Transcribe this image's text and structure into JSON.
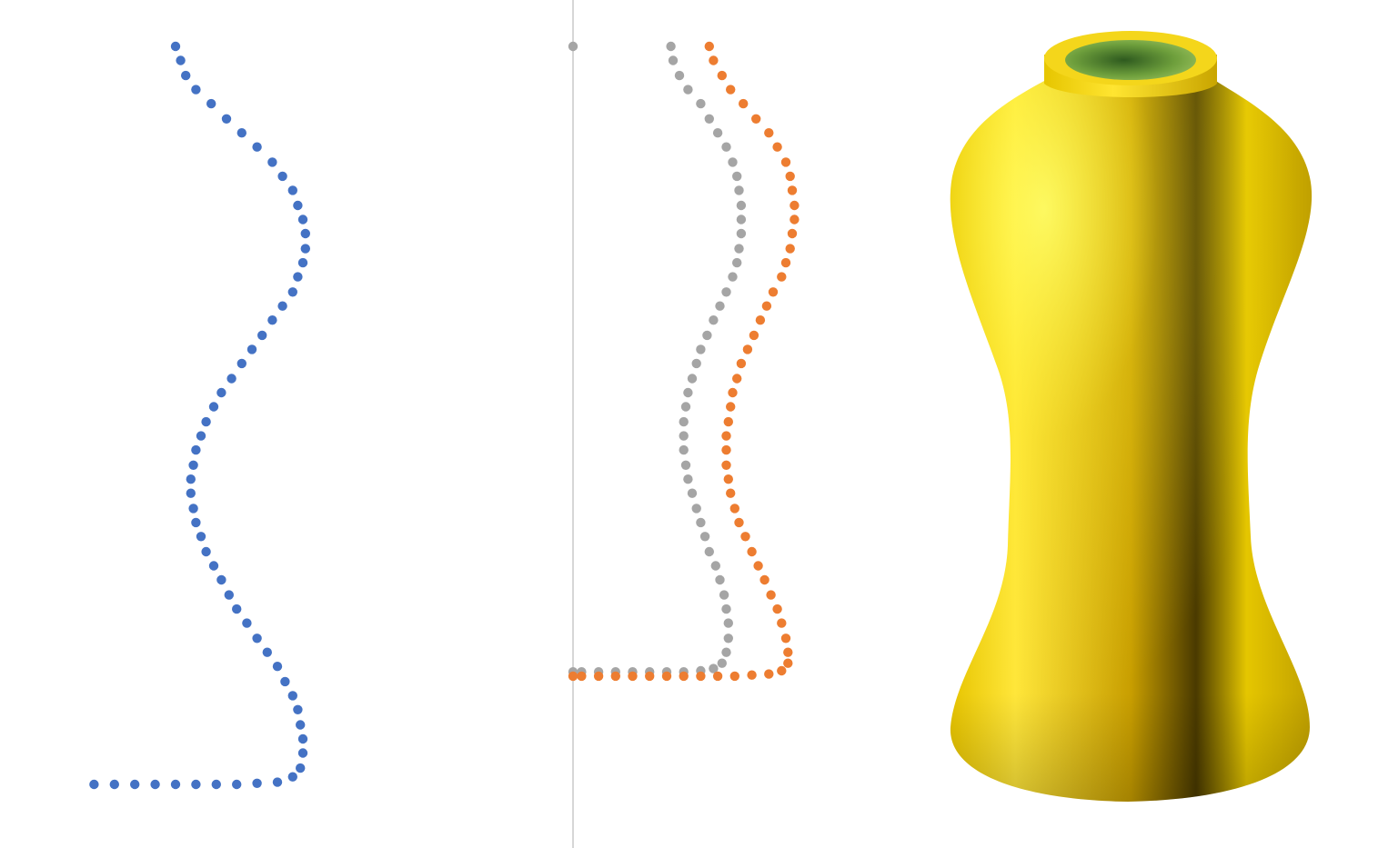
{
  "chart_data": [
    {
      "type": "scatter",
      "title": "",
      "xlabel": "",
      "ylabel": "",
      "grid": false,
      "legend": "none",
      "series": [
        {
          "color": "#4472C4",
          "points": [
            [
              -0.04,
              1.0
            ],
            [
              -0.03,
              0.987
            ],
            [
              -0.02,
              0.973
            ],
            [
              0.0,
              0.96
            ],
            [
              0.03,
              0.947
            ],
            [
              0.06,
              0.933
            ],
            [
              0.09,
              0.92
            ],
            [
              0.12,
              0.907
            ],
            [
              0.15,
              0.893
            ],
            [
              0.17,
              0.88
            ],
            [
              0.19,
              0.867
            ],
            [
              0.2,
              0.853
            ],
            [
              0.21,
              0.84
            ],
            [
              0.215,
              0.827
            ],
            [
              0.215,
              0.813
            ],
            [
              0.21,
              0.8
            ],
            [
              0.2,
              0.787
            ],
            [
              0.19,
              0.773
            ],
            [
              0.17,
              0.76
            ],
            [
              0.15,
              0.747
            ],
            [
              0.13,
              0.733
            ],
            [
              0.11,
              0.72
            ],
            [
              0.09,
              0.707
            ],
            [
              0.07,
              0.693
            ],
            [
              0.05,
              0.68
            ],
            [
              0.035,
              0.667
            ],
            [
              0.02,
              0.653
            ],
            [
              0.01,
              0.64
            ],
            [
              0.0,
              0.627
            ],
            [
              -0.005,
              0.613
            ],
            [
              -0.01,
              0.6
            ],
            [
              -0.01,
              0.587
            ],
            [
              -0.005,
              0.573
            ],
            [
              0.0,
              0.56
            ],
            [
              0.01,
              0.547
            ],
            [
              0.02,
              0.533
            ],
            [
              0.035,
              0.52
            ],
            [
              0.05,
              0.507
            ],
            [
              0.065,
              0.493
            ],
            [
              0.08,
              0.48
            ],
            [
              0.1,
              0.467
            ],
            [
              0.12,
              0.453
            ],
            [
              0.14,
              0.44
            ],
            [
              0.16,
              0.427
            ],
            [
              0.175,
              0.413
            ],
            [
              0.19,
              0.4
            ],
            [
              0.2,
              0.387
            ],
            [
              0.205,
              0.373
            ],
            [
              0.21,
              0.36
            ],
            [
              0.21,
              0.347
            ],
            [
              0.205,
              0.333
            ],
            [
              0.19,
              0.325
            ],
            [
              0.16,
              0.32
            ],
            [
              0.12,
              0.319
            ],
            [
              0.08,
              0.318
            ],
            [
              0.04,
              0.318
            ],
            [
              0.0,
              0.318
            ],
            [
              -0.04,
              0.318
            ],
            [
              -0.08,
              0.318
            ],
            [
              -0.12,
              0.318
            ],
            [
              -0.16,
              0.318
            ],
            [
              -0.2,
              0.318
            ]
          ]
        }
      ]
    },
    {
      "type": "scatter",
      "title": "",
      "xlabel": "",
      "ylabel": "",
      "grid": false,
      "legend": "none",
      "series": [
        {
          "color": "#A5A5A5",
          "points": [
            [
              0.0,
              1.0
            ],
            [
              0.23,
              1.0
            ],
            [
              0.235,
              0.987
            ],
            [
              0.25,
              0.973
            ],
            [
              0.27,
              0.96
            ],
            [
              0.3,
              0.947
            ],
            [
              0.32,
              0.933
            ],
            [
              0.34,
              0.92
            ],
            [
              0.36,
              0.907
            ],
            [
              0.375,
              0.893
            ],
            [
              0.385,
              0.88
            ],
            [
              0.39,
              0.867
            ],
            [
              0.395,
              0.853
            ],
            [
              0.395,
              0.84
            ],
            [
              0.395,
              0.827
            ],
            [
              0.39,
              0.813
            ],
            [
              0.385,
              0.8
            ],
            [
              0.375,
              0.787
            ],
            [
              0.36,
              0.773
            ],
            [
              0.345,
              0.76
            ],
            [
              0.33,
              0.747
            ],
            [
              0.315,
              0.733
            ],
            [
              0.3,
              0.72
            ],
            [
              0.29,
              0.707
            ],
            [
              0.28,
              0.693
            ],
            [
              0.27,
              0.68
            ],
            [
              0.265,
              0.667
            ],
            [
              0.26,
              0.653
            ],
            [
              0.26,
              0.64
            ],
            [
              0.26,
              0.627
            ],
            [
              0.265,
              0.613
            ],
            [
              0.27,
              0.6
            ],
            [
              0.28,
              0.587
            ],
            [
              0.29,
              0.573
            ],
            [
              0.3,
              0.56
            ],
            [
              0.31,
              0.547
            ],
            [
              0.32,
              0.533
            ],
            [
              0.335,
              0.52
            ],
            [
              0.345,
              0.507
            ],
            [
              0.355,
              0.493
            ],
            [
              0.36,
              0.48
            ],
            [
              0.365,
              0.467
            ],
            [
              0.365,
              0.453
            ],
            [
              0.36,
              0.44
            ],
            [
              0.35,
              0.43
            ],
            [
              0.33,
              0.425
            ],
            [
              0.3,
              0.423
            ],
            [
              0.26,
              0.422
            ],
            [
              0.22,
              0.422
            ],
            [
              0.18,
              0.422
            ],
            [
              0.14,
              0.422
            ],
            [
              0.1,
              0.422
            ],
            [
              0.06,
              0.422
            ],
            [
              0.02,
              0.422
            ],
            [
              0.0,
              0.422
            ]
          ]
        },
        {
          "color": "#ED7D31",
          "points": [
            [
              0.32,
              1.0
            ],
            [
              0.33,
              0.987
            ],
            [
              0.35,
              0.973
            ],
            [
              0.37,
              0.96
            ],
            [
              0.4,
              0.947
            ],
            [
              0.43,
              0.933
            ],
            [
              0.46,
              0.92
            ],
            [
              0.48,
              0.907
            ],
            [
              0.5,
              0.893
            ],
            [
              0.51,
              0.88
            ],
            [
              0.515,
              0.867
            ],
            [
              0.52,
              0.853
            ],
            [
              0.52,
              0.84
            ],
            [
              0.515,
              0.827
            ],
            [
              0.51,
              0.813
            ],
            [
              0.5,
              0.8
            ],
            [
              0.49,
              0.787
            ],
            [
              0.47,
              0.773
            ],
            [
              0.455,
              0.76
            ],
            [
              0.44,
              0.747
            ],
            [
              0.425,
              0.733
            ],
            [
              0.41,
              0.72
            ],
            [
              0.395,
              0.707
            ],
            [
              0.385,
              0.693
            ],
            [
              0.375,
              0.68
            ],
            [
              0.37,
              0.667
            ],
            [
              0.365,
              0.653
            ],
            [
              0.36,
              0.64
            ],
            [
              0.36,
              0.627
            ],
            [
              0.36,
              0.613
            ],
            [
              0.365,
              0.6
            ],
            [
              0.37,
              0.587
            ],
            [
              0.38,
              0.573
            ],
            [
              0.39,
              0.56
            ],
            [
              0.405,
              0.547
            ],
            [
              0.42,
              0.533
            ],
            [
              0.435,
              0.52
            ],
            [
              0.45,
              0.507
            ],
            [
              0.465,
              0.493
            ],
            [
              0.48,
              0.48
            ],
            [
              0.49,
              0.467
            ],
            [
              0.5,
              0.453
            ],
            [
              0.505,
              0.44
            ],
            [
              0.505,
              0.43
            ],
            [
              0.49,
              0.423
            ],
            [
              0.46,
              0.42
            ],
            [
              0.42,
              0.419
            ],
            [
              0.38,
              0.418
            ],
            [
              0.34,
              0.418
            ],
            [
              0.3,
              0.418
            ],
            [
              0.26,
              0.418
            ],
            [
              0.22,
              0.418
            ],
            [
              0.18,
              0.418
            ],
            [
              0.14,
              0.418
            ],
            [
              0.1,
              0.418
            ],
            [
              0.06,
              0.418
            ],
            [
              0.02,
              0.418
            ],
            [
              0.0,
              0.418
            ]
          ]
        }
      ]
    }
  ],
  "colors": {
    "axis_line": "#C8C8C8",
    "vase_gold": "#F2D200",
    "vase_interior": "#6FA84C"
  },
  "icons": {
    "vase": "vase-3d-render"
  }
}
